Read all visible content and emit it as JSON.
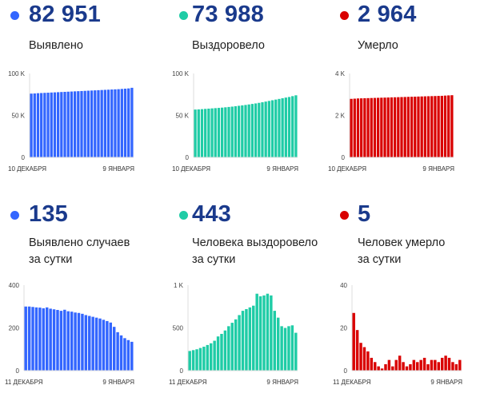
{
  "colors": {
    "blue": "#3366ff",
    "teal": "#1fcca6",
    "red": "#d90000",
    "number": "#1a3a8c"
  },
  "panels": [
    {
      "total": "82 951",
      "label_lines": [
        "Выявлено"
      ],
      "color": "blue",
      "icon": "blue-dot-icon"
    },
    {
      "total": "73 988",
      "label_lines": [
        "Выздоровело"
      ],
      "color": "teal",
      "icon": "teal-dot-icon"
    },
    {
      "total": "2 964",
      "label_lines": [
        "Умерло"
      ],
      "color": "red",
      "icon": "red-dot-icon"
    },
    {
      "total": "135",
      "label_lines": [
        "Выявлено случаев",
        "за сутки"
      ],
      "color": "blue",
      "icon": "blue-dot-icon"
    },
    {
      "total": "443",
      "label_lines": [
        "Человека выздоровело",
        "за сутки"
      ],
      "color": "teal",
      "icon": "teal-dot-icon"
    },
    {
      "total": "5",
      "label_lines": [
        "Человек умерло",
        "за сутки"
      ],
      "color": "red",
      "icon": "red-dot-icon"
    }
  ],
  "chart_data": [
    {
      "type": "bar",
      "color": "blue",
      "x_start": "10 ДЕКАБРЯ",
      "x_end": "9 ЯНВАРЯ",
      "yticks": [
        {
          "v": 0,
          "t": "0"
        },
        {
          "v": 50000,
          "t": "50 K"
        },
        {
          "v": 100000,
          "t": "100 K"
        }
      ],
      "ylim": [
        0,
        100000
      ],
      "values": [
        76000,
        76200,
        76500,
        76700,
        76900,
        77100,
        77300,
        77500,
        77700,
        77900,
        78100,
        78300,
        78500,
        78700,
        78900,
        79100,
        79300,
        79500,
        79700,
        79900,
        80100,
        80300,
        80500,
        80700,
        80900,
        81100,
        81300,
        81600,
        81900,
        82200,
        82951
      ]
    },
    {
      "type": "bar",
      "color": "teal",
      "x_start": "10 ДЕКАБРЯ",
      "x_end": "9 ЯНВАРЯ",
      "yticks": [
        {
          "v": 0,
          "t": "0"
        },
        {
          "v": 50000,
          "t": "50 K"
        },
        {
          "v": 100000,
          "t": "100 K"
        }
      ],
      "ylim": [
        0,
        100000
      ],
      "values": [
        57000,
        57200,
        57500,
        57800,
        58100,
        58400,
        58700,
        59000,
        59300,
        59700,
        60100,
        60500,
        61000,
        61500,
        62000,
        62500,
        63100,
        63700,
        64300,
        65000,
        65700,
        66500,
        67300,
        68100,
        68900,
        69700,
        70500,
        71300,
        72000,
        73000,
        73988
      ]
    },
    {
      "type": "bar",
      "color": "red",
      "x_start": "10 ДЕКАБРЯ",
      "x_end": "9 ЯНВАРЯ",
      "yticks": [
        {
          "v": 0,
          "t": "0"
        },
        {
          "v": 2000,
          "t": "2 K"
        },
        {
          "v": 4000,
          "t": "4 K"
        }
      ],
      "ylim": [
        0,
        4000
      ],
      "values": [
        2790,
        2800,
        2810,
        2815,
        2820,
        2825,
        2830,
        2835,
        2840,
        2845,
        2850,
        2855,
        2860,
        2865,
        2870,
        2875,
        2880,
        2885,
        2890,
        2895,
        2900,
        2905,
        2910,
        2915,
        2920,
        2925,
        2930,
        2935,
        2945,
        2955,
        2964
      ]
    },
    {
      "type": "bar",
      "color": "blue",
      "x_start": "11 ДЕКАБРЯ",
      "x_end": "9 ЯНВАРЯ",
      "yticks": [
        {
          "v": 0,
          "t": "0"
        },
        {
          "v": 200,
          "t": "200"
        },
        {
          "v": 400,
          "t": "400"
        }
      ],
      "ylim": [
        0,
        400
      ],
      "values": [
        300,
        300,
        298,
        296,
        295,
        292,
        296,
        290,
        287,
        284,
        280,
        285,
        278,
        276,
        272,
        270,
        266,
        260,
        256,
        252,
        248,
        244,
        238,
        232,
        225,
        205,
        180,
        165,
        152,
        143,
        135
      ]
    },
    {
      "type": "bar",
      "color": "teal",
      "x_start": "11 ДЕКАБРЯ",
      "x_end": "9 ЯНВАРЯ",
      "yticks": [
        {
          "v": 0,
          "t": "0"
        },
        {
          "v": 500,
          "t": "500"
        },
        {
          "v": 1000,
          "t": "1 K"
        }
      ],
      "ylim": [
        0,
        1000
      ],
      "values": [
        230,
        240,
        250,
        265,
        280,
        300,
        320,
        350,
        400,
        430,
        470,
        520,
        560,
        600,
        650,
        700,
        720,
        740,
        760,
        900,
        870,
        880,
        900,
        880,
        700,
        620,
        520,
        500,
        520,
        530,
        443
      ]
    },
    {
      "type": "bar",
      "color": "red",
      "x_start": "11 ДЕКАБРЯ",
      "x_end": "9 ЯНВАРЯ",
      "yticks": [
        {
          "v": 0,
          "t": "0"
        },
        {
          "v": 20,
          "t": "20"
        },
        {
          "v": 40,
          "t": "40"
        }
      ],
      "ylim": [
        0,
        40
      ],
      "values": [
        27,
        19,
        13,
        11,
        9,
        6,
        4,
        2,
        1,
        3,
        5,
        2,
        5,
        7,
        4,
        2,
        3,
        5,
        4,
        5,
        6,
        3,
        5,
        5,
        4,
        6,
        7,
        6,
        4,
        3,
        5
      ]
    }
  ]
}
